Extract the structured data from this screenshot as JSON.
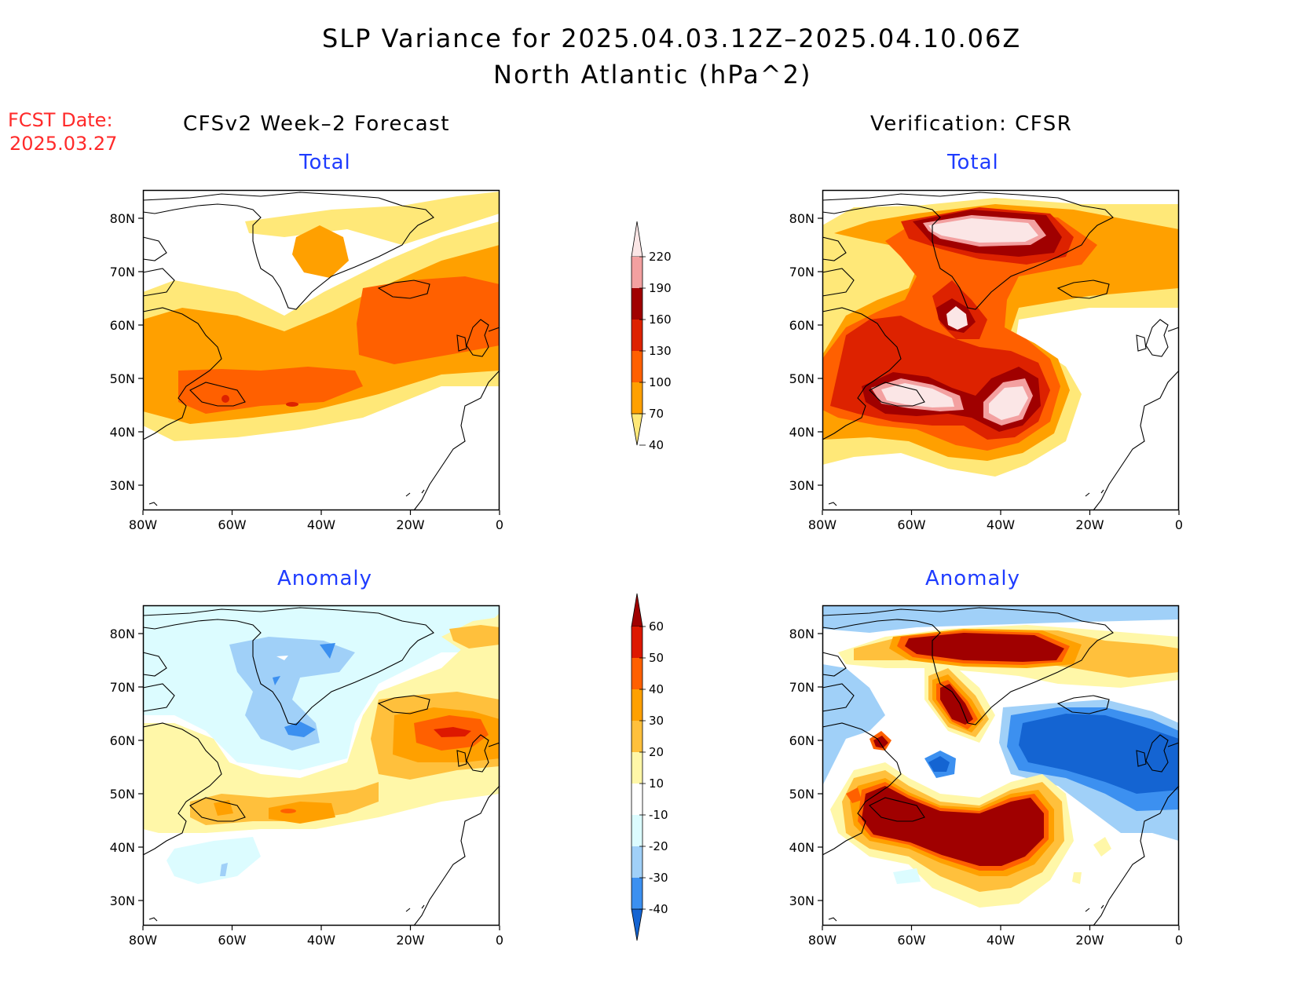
{
  "header": {
    "title_line1": "SLP Variance for 2025.04.03.12Z–2025.04.10.06Z",
    "title_line2": "North Atlantic (hPa^2)",
    "fcst_label": "FCST Date:",
    "fcst_date": "2025.03.27"
  },
  "columns": {
    "left": "CFSv2 Week–2 Forecast",
    "right": "Verification: CFSR"
  },
  "panel_subtitles": {
    "total": "Total",
    "anomaly": "Anomaly"
  },
  "axes": {
    "lon_labels": [
      "80W",
      "60W",
      "40W",
      "20W",
      "0"
    ],
    "lat_labels": [
      "80N",
      "70N",
      "60N",
      "50N",
      "40N",
      "30N"
    ]
  },
  "colorbars": {
    "total": {
      "levels": [
        "220",
        "190",
        "160",
        "130",
        "100",
        "70",
        "40"
      ],
      "colors": [
        "#fbe6e6",
        "#f3a0a0",
        "#a00000",
        "#dd2200",
        "#ff6000",
        "#ffa000",
        "#ffe878"
      ]
    },
    "anomaly": {
      "levels": [
        "60",
        "50",
        "40",
        "30",
        "20",
        "10",
        "-10",
        "-20",
        "-30",
        "-40"
      ],
      "colors": [
        "#a00000",
        "#dd1800",
        "#ff6000",
        "#ffa000",
        "#ffc03c",
        "#fff7a8",
        "#ffffff",
        "#dcfcff",
        "#a0d0f8",
        "#3c90f0",
        "#1464d2"
      ]
    }
  }
}
